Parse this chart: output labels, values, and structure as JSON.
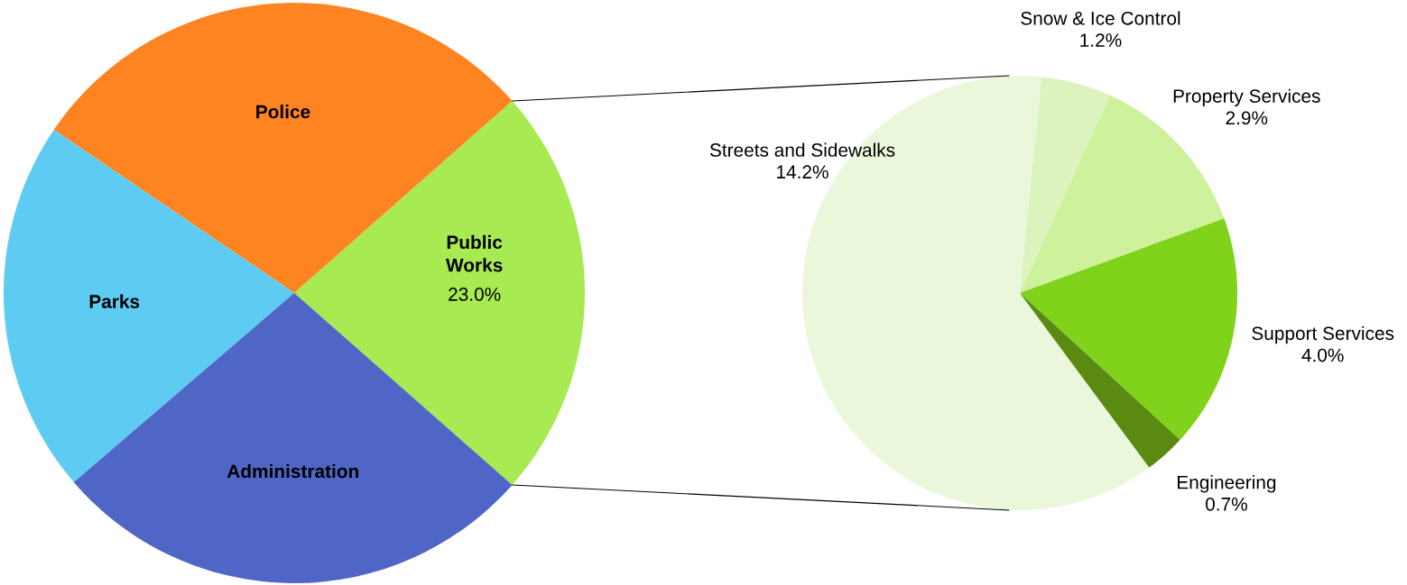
{
  "chart_data": [
    {
      "type": "pie",
      "categories": [
        "Public Works",
        "Police",
        "Parks",
        "Administration"
      ],
      "values": [
        23.0,
        29.0,
        20.8,
        27.2
      ],
      "colors": [
        "#a8ea52",
        "#fe8422",
        "#5dcbf2",
        "#5066c7"
      ],
      "value_labels": [
        "23.0%",
        null,
        null,
        null
      ]
    },
    {
      "type": "pie",
      "categories": [
        "Streets and Sidewalks",
        "Snow & Ice Control",
        "Property Services",
        "Support Services",
        "Engineering"
      ],
      "values": [
        14.2,
        1.2,
        2.9,
        4.0,
        0.7
      ],
      "colors": [
        "#ebf7db",
        "#dcf3be",
        "#cdf29b",
        "#80d21b",
        "#5a8a12"
      ],
      "value_labels": [
        "14.2%",
        "1.2%",
        "2.9%",
        "4.0%",
        "0.7%"
      ]
    }
  ]
}
